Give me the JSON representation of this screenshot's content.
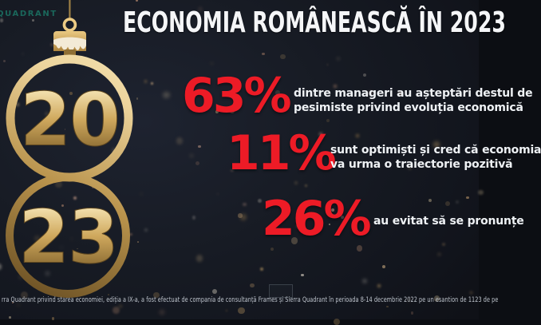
{
  "logo": {
    "text": "QUADRANT"
  },
  "title": {
    "text": "ECONOMIA ROMÂNEASCĂ ÎN 2023"
  },
  "ornament": {
    "top_number": "20",
    "bottom_number": "23"
  },
  "stats": [
    {
      "value": "63%",
      "lines": [
        "dintre manageri au așteptări destul de",
        "pesimiste privind evoluția economică"
      ]
    },
    {
      "value": "11%",
      "lines": [
        "sunt optimiști și cred că economia",
        "va urma o traiectorie pozitivă"
      ]
    },
    {
      "value": "26%",
      "lines": [
        "au evitat să se pronunțe",
        ""
      ]
    }
  ],
  "footer": {
    "text": "rra Quadrant privind starea economiei, ediția a IX-a, a fost efectuat de compania de consultanță Frames și Sierra Quadrant în perioada 8-14 decembrie 2022 pe un esantion de 1123 de pe"
  },
  "colors": {
    "background": "#171b24",
    "accent_red": "#ed1b26",
    "gold_light": "#eed49c",
    "gold_mid": "#c79e55",
    "gold_dark": "#6e5224",
    "title_white": "#f5f6f8",
    "logo_teal": "#1a675b"
  }
}
